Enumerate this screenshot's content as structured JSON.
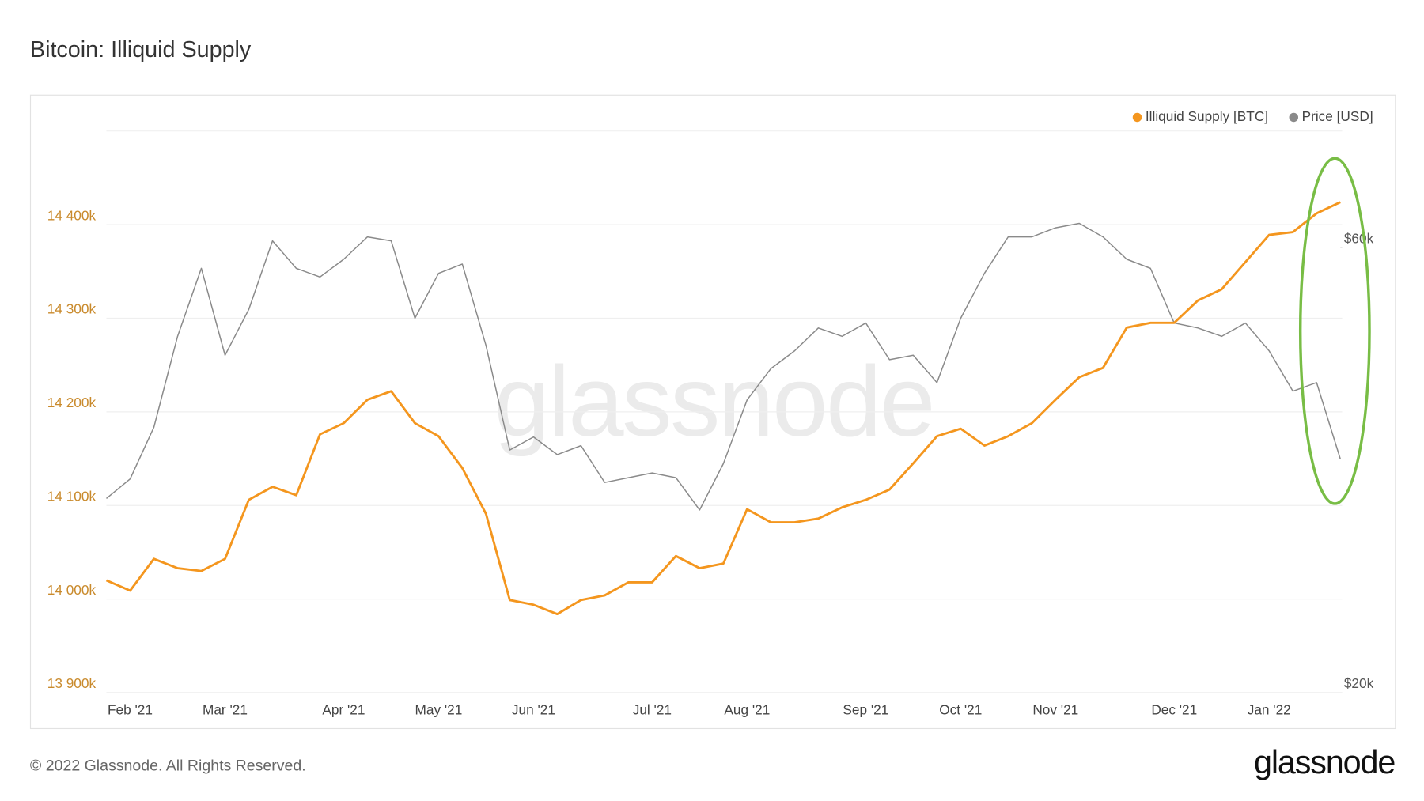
{
  "chart_data": {
    "type": "line",
    "title": "Bitcoin: Illiquid Supply",
    "watermark": "glassnode",
    "categories": [
      null,
      "Feb '21",
      null,
      null,
      null,
      "Mar '21",
      null,
      null,
      null,
      null,
      "Apr '21",
      null,
      null,
      null,
      "May '21",
      null,
      null,
      null,
      "Jun '21",
      null,
      null,
      null,
      null,
      "Jul '21",
      null,
      null,
      null,
      "Aug '21",
      null,
      null,
      null,
      null,
      "Sep '21",
      null,
      null,
      null,
      "Oct '21",
      null,
      null,
      null,
      "Nov '21",
      null,
      null,
      null,
      null,
      "Dec '21",
      null,
      null,
      null,
      "Jan '22",
      null,
      null,
      null
    ],
    "series": [
      {
        "name": "Illiquid Supply [BTC]",
        "color": "#f4961e",
        "values": [
          14020000,
          14009000,
          14043000,
          14033000,
          14030000,
          14043000,
          14106000,
          14120000,
          14111000,
          14176000,
          14188000,
          14213000,
          14222000,
          14188000,
          14174000,
          14140000,
          14091000,
          13999000,
          13994000,
          13984000,
          13999000,
          14004000,
          14018000,
          14018000,
          14046000,
          14033000,
          14038000,
          14096000,
          14082000,
          14082000,
          14086000,
          14098000,
          14106000,
          14117000,
          14145000,
          14174000,
          14182000,
          14164000,
          14174000,
          14188000,
          14213000,
          14237000,
          14247000,
          14290000,
          14295000,
          14295000,
          14319000,
          14331000,
          14360000,
          14389000,
          14392000,
          14412000,
          14424000
        ]
      },
      {
        "name": "Price [USD]",
        "color": "#8a8a8a",
        "axis": "y2",
        "values": [
          32300,
          33900,
          38500,
          48200,
          57000,
          46000,
          51500,
          61000,
          57000,
          55800,
          58300,
          61600,
          61000,
          50400,
          56300,
          57600,
          47100,
          36400,
          37600,
          36000,
          36800,
          33600,
          34000,
          34400,
          34000,
          31400,
          35200,
          41200,
          44500,
          46500,
          49200,
          48200,
          49800,
          45500,
          46000,
          43000,
          50400,
          56300,
          61600,
          61600,
          63000,
          63700,
          61600,
          58300,
          57000,
          49800,
          49200,
          48200,
          49800,
          46500,
          42100,
          43000,
          35600
        ]
      }
    ],
    "ylim": [
      13900000,
      14500000
    ],
    "yticks": [
      {
        "value": 13900000,
        "label": "13 900k"
      },
      {
        "value": 14000000,
        "label": "14 000k"
      },
      {
        "value": 14100000,
        "label": "14 100k"
      },
      {
        "value": 14200000,
        "label": "14 200k"
      },
      {
        "value": 14300000,
        "label": "14 300k"
      },
      {
        "value": 14400000,
        "label": "14 400k"
      }
    ],
    "y2lim": [
      20000,
      80000
    ],
    "y2scale": "log",
    "y2ticks": [
      {
        "value": 20000,
        "label": "$20k"
      },
      {
        "value": 60000,
        "label": "$60k"
      }
    ],
    "grid": true,
    "legend": "top-right"
  },
  "footer": {
    "copyright": "© 2022 Glassnode. All Rights Reserved.",
    "logo": "glassnode"
  }
}
